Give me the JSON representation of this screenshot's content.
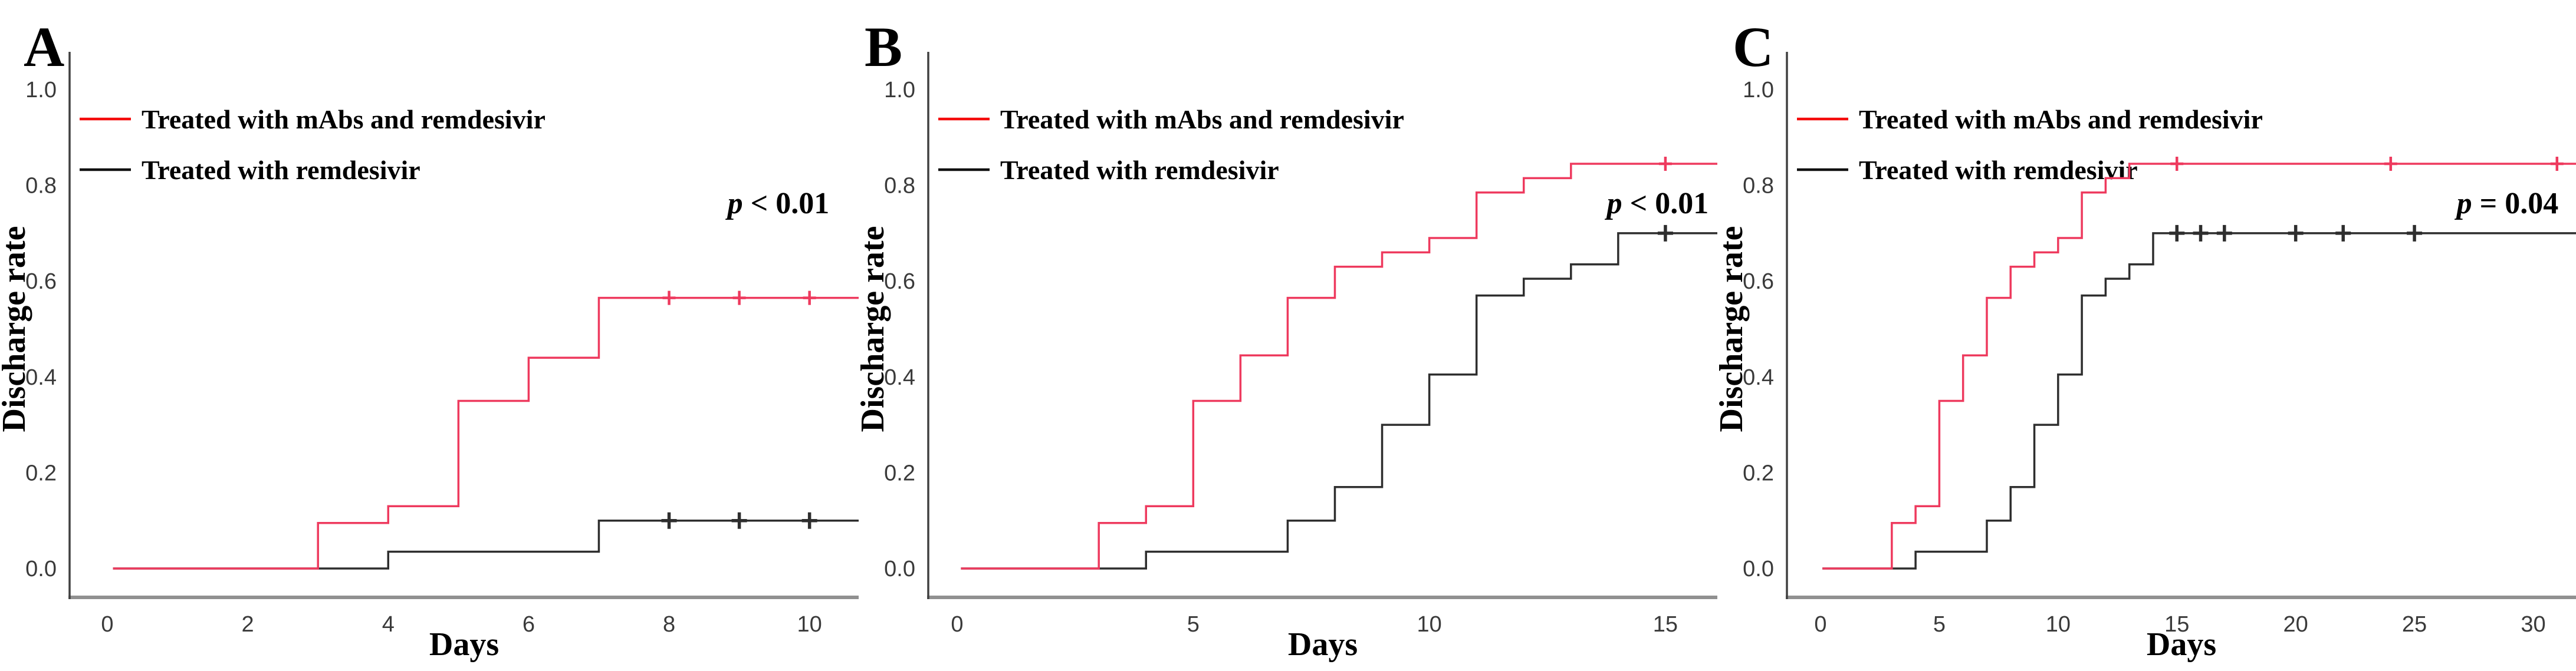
{
  "figure": {
    "xlabel": "Days",
    "ylabel": "Discharge rate",
    "legend": [
      {
        "label": "Treated with mAbs and remdesivir",
        "color_key": "red"
      },
      {
        "label": "Treated with remdesivir",
        "color_key": "black"
      }
    ],
    "colors": {
      "legend_red": "#f40b0b",
      "curve_red": "#ee3a5e",
      "legend_black": "#101010",
      "curve_black": "#2e2e2e",
      "axis_bottom": "#909090",
      "axis_left": "#404040",
      "tick_text": "#3a3a3a",
      "text": "#000000"
    }
  },
  "chart_data": [
    {
      "type": "line",
      "subtype": "kaplan-meier-step",
      "panel_label": "A",
      "p_value_label": "p < 0.01",
      "xlabel": "Days",
      "ylabel": "Discharge rate",
      "xticks": [
        0,
        2,
        4,
        6,
        8,
        10
      ],
      "yticks": [
        0.0,
        0.2,
        0.4,
        0.6,
        0.8,
        1.0
      ],
      "xlim": [
        0,
        10.7
      ],
      "ylim": [
        0,
        1.05
      ],
      "legend_position": "upper-left",
      "grid": false,
      "series": [
        {
          "name": "Treated with remdesivir",
          "color_key": "black",
          "steps": [
            [
              0,
              0.0
            ],
            [
              4,
              0.035
            ],
            [
              7,
              0.1
            ]
          ],
          "censor_days": [
            8,
            9,
            10
          ]
        },
        {
          "name": "Treated with mAbs and remdesivir",
          "color_key": "red",
          "steps": [
            [
              0,
              0.0
            ],
            [
              3,
              0.095
            ],
            [
              4,
              0.13
            ],
            [
              5,
              0.35
            ],
            [
              6,
              0.44
            ],
            [
              7,
              0.565
            ]
          ],
          "censor_days": [
            8,
            9,
            10
          ]
        }
      ]
    },
    {
      "type": "line",
      "subtype": "kaplan-meier-step",
      "panel_label": "B",
      "p_value_label": "p < 0.01",
      "xlabel": "Days",
      "ylabel": "Discharge rate",
      "xticks": [
        0,
        5,
        10,
        15
      ],
      "yticks": [
        0.0,
        0.2,
        0.4,
        0.6,
        0.8,
        1.0
      ],
      "xlim": [
        0,
        16.1
      ],
      "ylim": [
        0,
        1.05
      ],
      "legend_position": "upper-left",
      "grid": false,
      "series": [
        {
          "name": "Treated with remdesivir",
          "color_key": "black",
          "steps": [
            [
              0,
              0.0
            ],
            [
              4,
              0.035
            ],
            [
              7,
              0.1
            ],
            [
              8,
              0.17
            ],
            [
              9,
              0.3
            ],
            [
              10,
              0.405
            ],
            [
              11,
              0.57
            ],
            [
              12,
              0.605
            ],
            [
              13,
              0.635
            ],
            [
              14,
              0.7
            ]
          ],
          "censor_days": [
            15
          ]
        },
        {
          "name": "Treated with mAbs and remdesivir",
          "color_key": "red",
          "steps": [
            [
              0,
              0.0
            ],
            [
              3,
              0.095
            ],
            [
              4,
              0.13
            ],
            [
              5,
              0.35
            ],
            [
              6,
              0.445
            ],
            [
              7,
              0.565
            ],
            [
              8,
              0.63
            ],
            [
              9,
              0.66
            ],
            [
              10,
              0.69
            ],
            [
              11,
              0.785
            ],
            [
              12,
              0.815
            ],
            [
              13,
              0.845
            ]
          ],
          "censor_days": [
            15
          ]
        }
      ]
    },
    {
      "type": "line",
      "subtype": "kaplan-meier-step",
      "panel_label": "C",
      "p_value_label": "p = 0.04",
      "xlabel": "Days",
      "ylabel": "Discharge rate",
      "xticks": [
        0,
        5,
        10,
        15,
        20,
        25,
        30
      ],
      "yticks": [
        0.0,
        0.2,
        0.4,
        0.6,
        0.8,
        1.0
      ],
      "xlim": [
        0,
        31.8
      ],
      "ylim": [
        0,
        1.05
      ],
      "legend_position": "upper-left",
      "grid": false,
      "series": [
        {
          "name": "Treated with remdesivir",
          "color_key": "black",
          "steps": [
            [
              0,
              0.0
            ],
            [
              4,
              0.035
            ],
            [
              7,
              0.1
            ],
            [
              8,
              0.17
            ],
            [
              9,
              0.3
            ],
            [
              10,
              0.405
            ],
            [
              11,
              0.57
            ],
            [
              12,
              0.605
            ],
            [
              13,
              0.635
            ],
            [
              14,
              0.7
            ]
          ],
          "censor_days": [
            15,
            16,
            17,
            20,
            22,
            25
          ]
        },
        {
          "name": "Treated with mAbs and remdesivir",
          "color_key": "red",
          "steps": [
            [
              0,
              0.0
            ],
            [
              3,
              0.095
            ],
            [
              4,
              0.13
            ],
            [
              5,
              0.35
            ],
            [
              6,
              0.445
            ],
            [
              7,
              0.565
            ],
            [
              8,
              0.63
            ],
            [
              9,
              0.66
            ],
            [
              10,
              0.69
            ],
            [
              11,
              0.785
            ],
            [
              12,
              0.815
            ],
            [
              13,
              0.845
            ]
          ],
          "censor_days": [
            15,
            24,
            31
          ]
        }
      ]
    }
  ]
}
